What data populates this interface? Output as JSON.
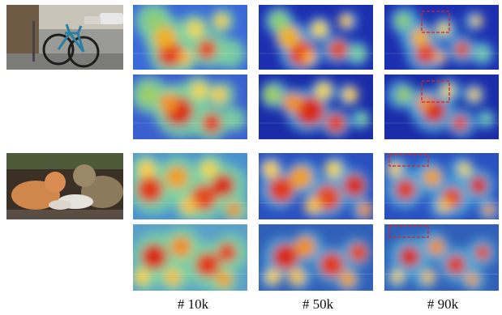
{
  "columns": [
    {
      "label": "# 10k"
    },
    {
      "label": "# 50k"
    },
    {
      "label": "# 90k"
    }
  ],
  "rows": [
    {
      "source": "bicycle-photo",
      "heatmaps": [
        "bike-10k-a",
        "bike-50k-a",
        "bike-90k-a"
      ]
    },
    {
      "source": "",
      "heatmaps": [
        "bike-10k-b",
        "bike-50k-b",
        "bike-90k-b"
      ]
    },
    {
      "source": "cats-photo",
      "heatmaps": [
        "cats-10k-a",
        "cats-50k-a",
        "cats-90k-a"
      ]
    },
    {
      "source": "",
      "heatmaps": [
        "cats-10k-b",
        "cats-50k-b",
        "cats-90k-b"
      ]
    }
  ],
  "highlight_color": "#e02020"
}
